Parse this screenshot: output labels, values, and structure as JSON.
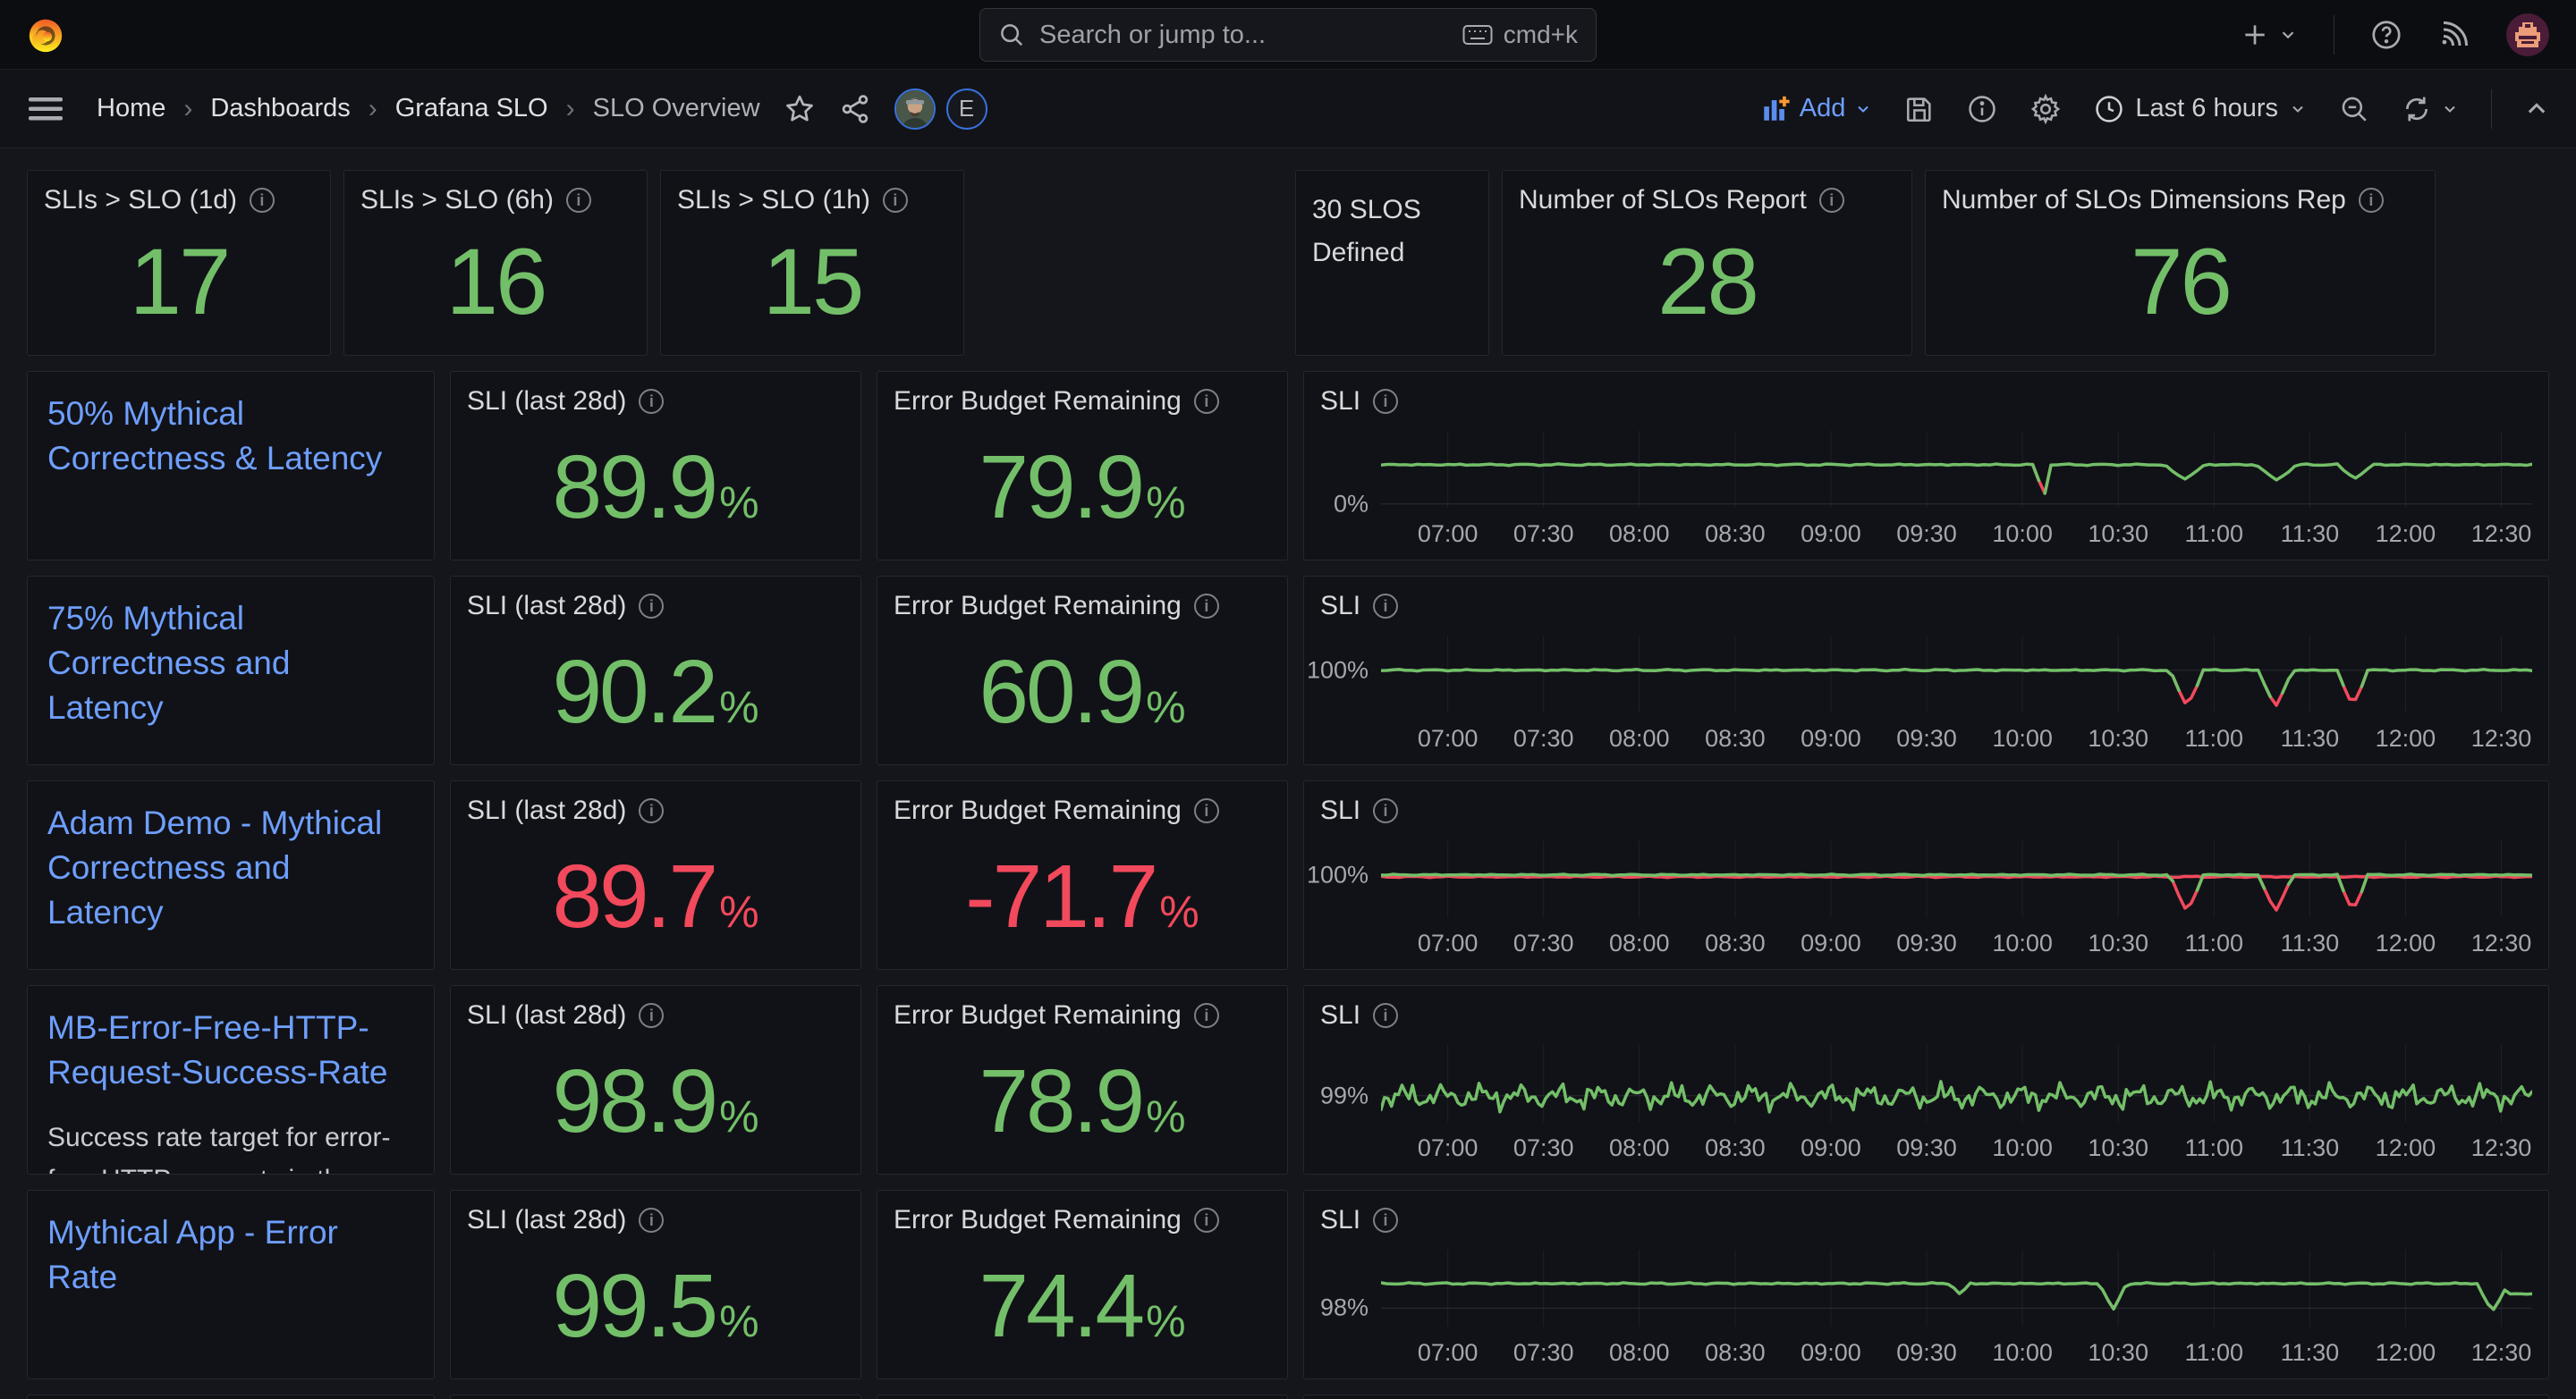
{
  "topbar": {
    "search_placeholder": "Search or jump to...",
    "search_shortcut": "cmd+k"
  },
  "toolbar": {
    "breadcrumbs": [
      "Home",
      "Dashboards",
      "Grafana SLO",
      "SLO Overview"
    ],
    "avatar_letter": "E",
    "add_label": "Add",
    "time_range": "Last 6 hours"
  },
  "labels": {
    "percent": "%"
  },
  "colors": {
    "green": "#73BF69",
    "red": "#F2495C",
    "blue": "#6E9FFF",
    "orange": "#FF9830"
  },
  "stats": [
    {
      "title": "SLIs > SLO (1d)",
      "value": "17"
    },
    {
      "title": "SLIs > SLO (6h)",
      "value": "16"
    },
    {
      "title": "SLIs > SLO (1h)",
      "value": "15"
    },
    {
      "title": "Number of SLOs Report",
      "value": "28"
    },
    {
      "title": "Number of SLOs Dimensions Rep",
      "value": "76"
    }
  ],
  "defined_panel": {
    "text": "30 SLOS Defined"
  },
  "rows": [
    {
      "name": "50% Mythical Correctness & Latency",
      "desc": null,
      "sli_title": "SLI (last 28d)",
      "sli_value": "89.9",
      "sli_color": "green",
      "ebr_title": "Error Budget Remaining",
      "ebr_value": "79.9",
      "ebr_color": "green",
      "chart_title": "SLI",
      "chart_index": 0
    },
    {
      "name": "75% Mythical Correctness and Latency",
      "desc": null,
      "sli_title": "SLI (last 28d)",
      "sli_value": "90.2",
      "sli_color": "green",
      "ebr_title": "Error Budget Remaining",
      "ebr_value": "60.9",
      "ebr_color": "green",
      "chart_title": "SLI",
      "chart_index": 1
    },
    {
      "name": "Adam Demo - Mythical Correctness and Latency",
      "desc": null,
      "sli_title": "SLI (last 28d)",
      "sli_value": "89.7",
      "sli_color": "red",
      "ebr_title": "Error Budget Remaining",
      "ebr_value": "-71.7",
      "ebr_color": "red",
      "chart_title": "SLI",
      "chart_index": 2
    },
    {
      "name": "MB-Error-Free-HTTP-Request-Success-Rate",
      "desc": "Success rate target for error-free HTTP requests in the",
      "sli_title": "SLI (last 28d)",
      "sli_value": "98.9",
      "sli_color": "green",
      "ebr_title": "Error Budget Remaining",
      "ebr_value": "78.9",
      "ebr_color": "green",
      "chart_title": "SLI",
      "chart_index": 3
    },
    {
      "name": "Mythical App - Error Rate",
      "desc": null,
      "sli_title": "SLI (last 28d)",
      "sli_value": "99.5",
      "sli_color": "green",
      "ebr_title": "Error Budget Remaining",
      "ebr_value": "74.4",
      "ebr_color": "green",
      "chart_title": "SLI",
      "chart_index": 4
    }
  ],
  "chart_data": [
    {
      "type": "line",
      "title": "SLI",
      "row": "50% Mythical Correctness & Latency",
      "time_range": "Last 6 hours (~06:40-12:40)",
      "x_ticks": [
        "07:00",
        "07:30",
        "08:00",
        "08:30",
        "09:00",
        "09:30",
        "10:00",
        "10:30",
        "11:00",
        "11:30",
        "12:00",
        "12:30"
      ],
      "x_start": 0.058,
      "x_step": 0.0832,
      "y_tick": {
        "label": "0%",
        "y": 0.95
      },
      "series_note": "flat SLI ~100% with breach spike to 0% at ~10:05 (red) and three shallow green dips at ~10:50, ~11:20, ~11:45",
      "baseline": 0.44,
      "noise_amp": 0.012,
      "seed": 3.1,
      "samples": 190,
      "style": "smooth",
      "dips": [
        {
          "x": 0.575,
          "hw": 0.0055,
          "depth": 0.95,
          "red_below": 0.6,
          "time": "10:05"
        },
        {
          "x": 0.698,
          "hw": 0.017,
          "depth": 0.63,
          "red_below": null,
          "time": "10:50"
        },
        {
          "x": 0.778,
          "hw": 0.017,
          "depth": 0.64,
          "red_below": null,
          "time": "11:20"
        },
        {
          "x": 0.846,
          "hw": 0.015,
          "depth": 0.62,
          "red_below": null,
          "time": "11:45"
        }
      ],
      "tail": null,
      "underlay": null,
      "colors": {
        "ok": "#73BF69",
        "breach": "#F2495C"
      }
    },
    {
      "type": "line",
      "title": "SLI",
      "row": "75% Mythical Correctness and Latency",
      "time_range": "Last 6 hours (~06:40-12:40)",
      "x_ticks": [
        "07:00",
        "07:30",
        "08:00",
        "08:30",
        "09:00",
        "09:30",
        "10:00",
        "10:30",
        "11:00",
        "11:30",
        "12:00",
        "12:30"
      ],
      "x_start": 0.058,
      "x_step": 0.0832,
      "y_tick": {
        "label": "100%",
        "y": 0.45
      },
      "series_note": "flat SLI ~100% with three deep dips (red bottoms) at ~10:52, ~11:20, ~11:45",
      "baseline": 0.45,
      "noise_amp": 0.012,
      "seed": 1.7,
      "samples": 190,
      "style": "smooth",
      "dips": [
        {
          "x": 0.7,
          "hw": 0.014,
          "depth": 0.92,
          "red_below": 0.63,
          "time": "10:52"
        },
        {
          "x": 0.777,
          "hw": 0.014,
          "depth": 0.93,
          "red_below": 0.63,
          "time": "11:20"
        },
        {
          "x": 0.844,
          "hw": 0.013,
          "depth": 0.91,
          "red_below": 0.63,
          "time": "11:45"
        }
      ],
      "tail": null,
      "underlay": null,
      "colors": {
        "ok": "#73BF69",
        "breach": "#F2495C"
      }
    },
    {
      "type": "line",
      "title": "SLI",
      "row": "Adam Demo - Mythical Correctness and Latency",
      "time_range": "Last 6 hours (~06:40-12:40)",
      "x_ticks": [
        "07:00",
        "07:30",
        "08:00",
        "08:30",
        "09:00",
        "09:30",
        "10:00",
        "10:30",
        "11:00",
        "11:30",
        "12:00",
        "12:30"
      ],
      "x_start": 0.058,
      "x_step": 0.0832,
      "y_tick": {
        "label": "100%",
        "y": 0.45
      },
      "series_note": "green SLI ~100% with red companion line just beneath; three fully-red deep dips at ~10:52, ~11:20, ~11:45",
      "baseline": 0.45,
      "noise_amp": 0.01,
      "seed": 2.4,
      "samples": 190,
      "style": "smooth",
      "dips": [
        {
          "x": 0.7,
          "hw": 0.014,
          "depth": 0.93,
          "red_below": 0.5,
          "time": "10:52"
        },
        {
          "x": 0.777,
          "hw": 0.014,
          "depth": 0.93,
          "red_below": 0.5,
          "time": "11:20"
        },
        {
          "x": 0.844,
          "hw": 0.013,
          "depth": 0.92,
          "red_below": 0.5,
          "time": "11:45"
        }
      ],
      "tail": null,
      "underlay": {
        "offset": 0.025,
        "noise_amp": 0.01,
        "seed": 5.2
      },
      "colors": {
        "ok": "#73BF69",
        "breach": "#F2495C"
      }
    },
    {
      "type": "line",
      "title": "SLI",
      "row": "MB-Error-Free-HTTP-Request-Success-Rate",
      "time_range": "Last 6 hours (~06:40-12:40)",
      "x_ticks": [
        "07:00",
        "07:30",
        "08:00",
        "08:30",
        "09:00",
        "09:30",
        "10:00",
        "10:30",
        "11:00",
        "11:30",
        "12:00",
        "12:30"
      ],
      "x_start": 0.058,
      "x_step": 0.0832,
      "y_tick": {
        "label": "99%",
        "y": 0.66
      },
      "series_note": "noisy SLI oscillating around ~99% across the whole window, no breaches",
      "baseline": 0.67,
      "noise_amp": 0.22,
      "seed": 0.9,
      "samples": 330,
      "style": "choppy",
      "dips": [],
      "tail": null,
      "underlay": null,
      "colors": {
        "ok": "#73BF69",
        "breach": "#F2495C"
      }
    },
    {
      "type": "line",
      "title": "SLI",
      "row": "Mythical App - Error Rate",
      "time_range": "Last 6 hours (~06:40-12:40)",
      "x_ticks": [
        "07:00",
        "07:30",
        "08:00",
        "08:30",
        "09:00",
        "09:30",
        "10:00",
        "10:30",
        "11:00",
        "11:30",
        "12:00",
        "12:30"
      ],
      "x_start": 0.058,
      "x_step": 0.0832,
      "y_tick": {
        "label": "98%",
        "y": 0.76
      },
      "series_note": "SLI ~98.4% flat; small dip ~09:40, deep dip touching 98% (red tip) at ~10:30, end-of-window drop to 98% (red tip) after 12:30 then partial recovery",
      "baseline": 0.44,
      "noise_amp": 0.013,
      "seed": 4.6,
      "samples": 210,
      "style": "smooth",
      "dips": [
        {
          "x": 0.503,
          "hw": 0.008,
          "depth": 0.58,
          "red_below": null,
          "time": "09:40"
        },
        {
          "x": 0.636,
          "hw": 0.011,
          "depth": 0.78,
          "red_below": 0.72,
          "time": "10:30"
        },
        {
          "x": 0.9655,
          "hw": 0.013,
          "depth": 0.8,
          "red_below": 0.72,
          "time": "12:33"
        }
      ],
      "tail": {
        "from": 0.979,
        "level": 0.575
      },
      "underlay": null,
      "colors": {
        "ok": "#73BF69",
        "breach": "#F2495C"
      }
    }
  ]
}
